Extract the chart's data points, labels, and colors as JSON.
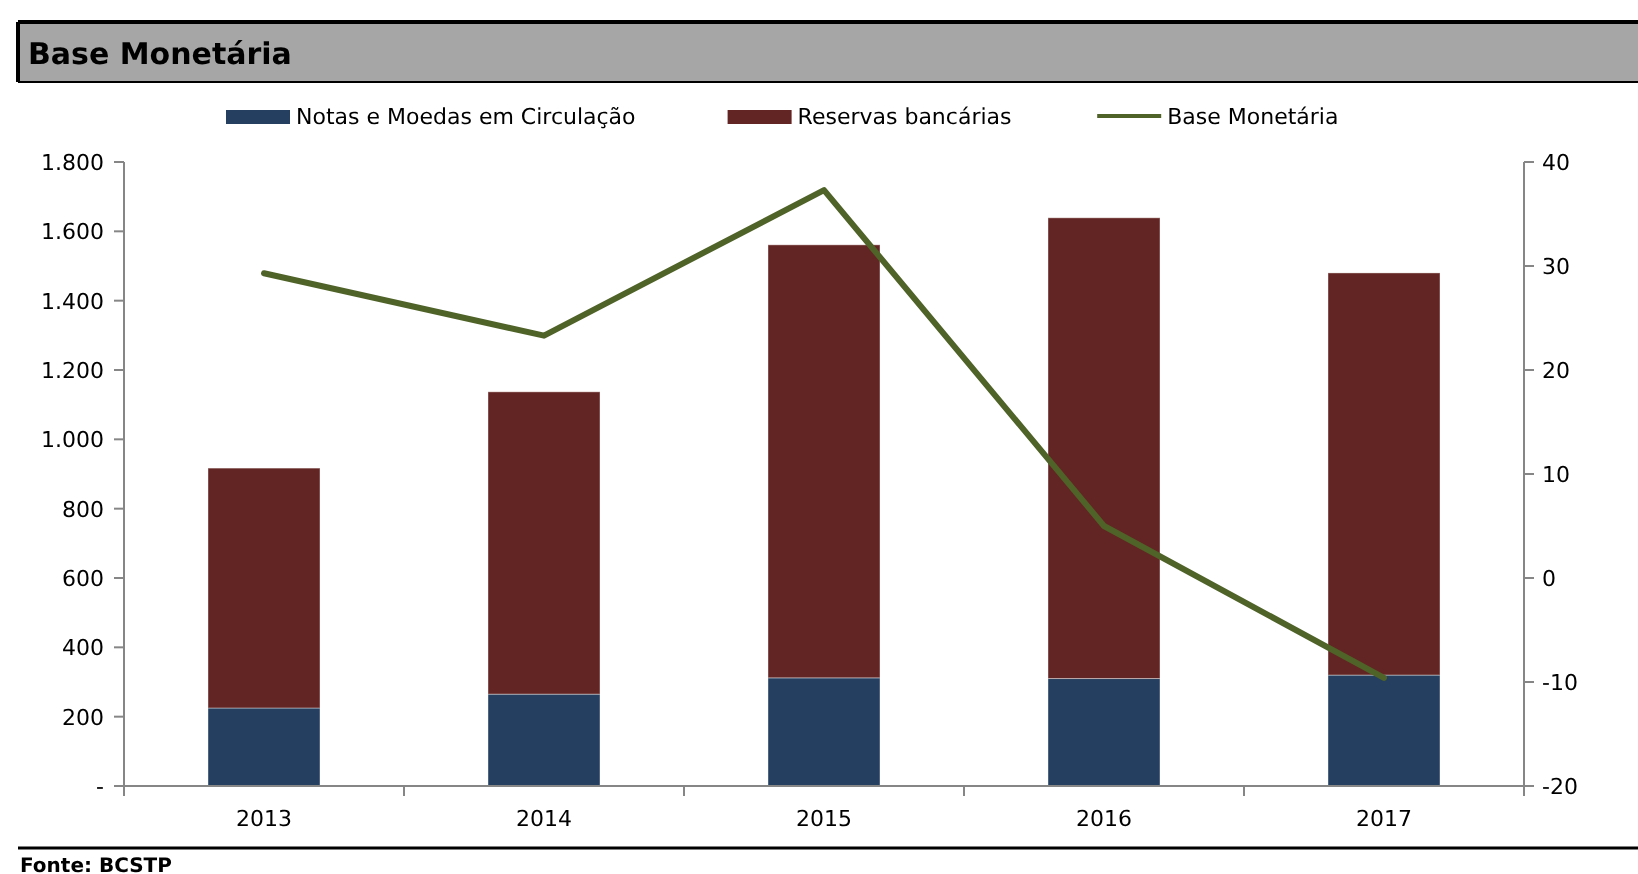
{
  "chart_data": {
    "type": "bar",
    "title": "Base Monetária",
    "categories": [
      "2013",
      "2014",
      "2015",
      "2016",
      "2017"
    ],
    "stacked": true,
    "series": [
      {
        "name": "Notas e Moedas em Circulação",
        "color": "#243f60",
        "values": [
          225,
          265,
          312,
          310,
          320
        ]
      },
      {
        "name": "Reservas bancárias",
        "color": "#632523",
        "values": [
          692,
          872,
          1249,
          1329,
          1160
        ]
      },
      {
        "name": "Base Monetária",
        "type": "line",
        "axis": "y2",
        "color": "#4f6228",
        "values": [
          29.3,
          23.3,
          37.3,
          5.0,
          -9.6
        ]
      }
    ],
    "ylim": [
      0,
      1800
    ],
    "yticks": [
      {
        "value": 0,
        "label": "-"
      },
      {
        "value": 200,
        "label": "200"
      },
      {
        "value": 400,
        "label": "400"
      },
      {
        "value": 600,
        "label": "600"
      },
      {
        "value": 800,
        "label": "800"
      },
      {
        "value": 1000,
        "label": "1.000"
      },
      {
        "value": 1200,
        "label": "1.200"
      },
      {
        "value": 1400,
        "label": "1.400"
      },
      {
        "value": 1600,
        "label": "1.600"
      },
      {
        "value": 1800,
        "label": "1.800"
      }
    ],
    "y2lim": [
      -20,
      40
    ],
    "y2ticks": [
      -20,
      -10,
      0,
      10,
      20,
      30,
      40
    ],
    "legend": "top",
    "grid": false,
    "marker": "none",
    "line_style": "solid",
    "annotations": [
      "Fonte: BCSTP"
    ]
  }
}
